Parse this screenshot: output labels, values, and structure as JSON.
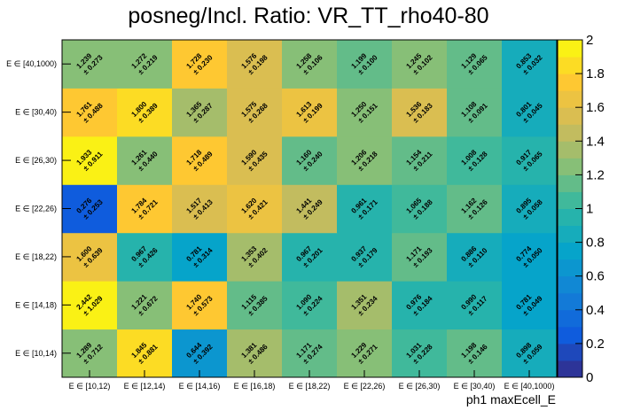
{
  "chart_data": {
    "type": "heatmap",
    "title": "posneg/Incl. Ratio: VR_TT_rho40-80",
    "xlabel": "ph1 maxEcell_E",
    "ylabel": "",
    "x_categories": [
      "E ∈ [10,12)",
      "E ∈ [12,14)",
      "E ∈ [14,16)",
      "E ∈ [16,18)",
      "E ∈ [18,22)",
      "E ∈ [22,26)",
      "E ∈ [26,30)",
      "E ∈ [30,40)",
      "E ∈ [40,1000)"
    ],
    "y_categories": [
      "E ∈ [10,14)",
      "E ∈ [14,18)",
      "E ∈ [18,22)",
      "E ∈ [22,26)",
      "E ∈ [26,30)",
      "E ∈ [30,40)",
      "E ∈ [40,1000)"
    ],
    "zlim": [
      0,
      2
    ],
    "z_ticks": [
      "0",
      "0.2",
      "0.4",
      "0.6",
      "0.8",
      "1",
      "1.2",
      "1.4",
      "1.6",
      "1.8",
      "2"
    ],
    "values": [
      [
        1.289,
        1.845,
        0.644,
        1.381,
        1.171,
        1.229,
        1.031,
        1.198,
        0.898
      ],
      [
        2.442,
        1.221,
        1.74,
        1.115,
        1.09,
        1.351,
        0.976,
        0.99,
        0.781
      ],
      [
        1.6,
        0.967,
        0.781,
        1.353,
        0.967,
        0.937,
        1.171,
        0.886,
        0.774
      ],
      [
        0.276,
        1.784,
        1.517,
        1.62,
        1.441,
        0.961,
        1.065,
        1.162,
        0.895
      ],
      [
        1.933,
        1.261,
        1.718,
        1.59,
        1.16,
        1.206,
        1.154,
        1.008,
        0.917
      ],
      [
        1.761,
        1.8,
        1.365,
        1.575,
        1.613,
        1.25,
        1.536,
        1.108,
        0.801
      ],
      [
        1.239,
        1.272,
        1.728,
        1.576,
        1.258,
        1.199,
        1.245,
        1.129,
        0.853
      ]
    ],
    "errors": [
      [
        0.712,
        0.881,
        0.392,
        0.486,
        0.274,
        0.271,
        0.228,
        0.146,
        0.059
      ],
      [
        1.029,
        0.672,
        0.573,
        0.385,
        0.224,
        0.234,
        0.184,
        0.117,
        0.049
      ],
      [
        0.639,
        0.426,
        0.314,
        0.402,
        0.201,
        0.179,
        0.193,
        0.11,
        0.05
      ],
      [
        0.253,
        0.721,
        0.413,
        0.421,
        0.249,
        0.171,
        0.188,
        0.126,
        0.058
      ],
      [
        0.911,
        0.44,
        0.489,
        0.435,
        0.24,
        0.218,
        0.211,
        0.128,
        0.065
      ],
      [
        0.488,
        0.389,
        0.287,
        0.268,
        0.199,
        0.151,
        0.183,
        0.091,
        0.045
      ],
      [
        0.273,
        0.219,
        0.23,
        0.198,
        0.106,
        0.1,
        0.102,
        0.065,
        0.032
      ]
    ],
    "colorscale": [
      "#352a87",
      "#0f5cdd",
      "#1481d6",
      "#06a4ca",
      "#2eb7a4",
      "#87bf77",
      "#d1bb59",
      "#fec832",
      "#f9fb0e"
    ]
  }
}
